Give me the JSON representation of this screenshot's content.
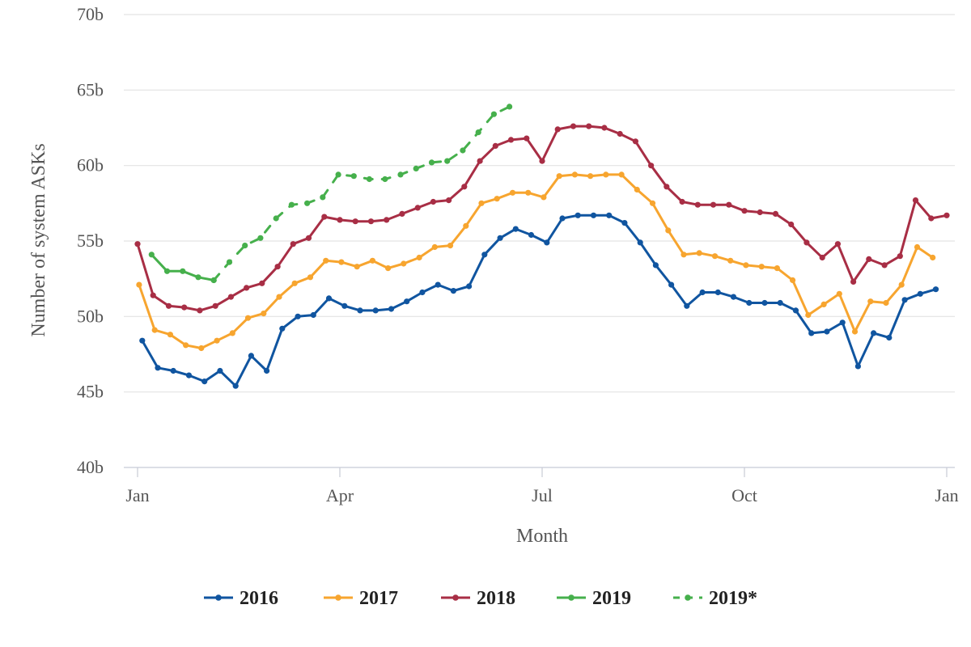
{
  "chart_data": {
    "type": "line",
    "title": "",
    "xlabel": "Month",
    "ylabel": "Number of system ASKs",
    "x_ticks": [
      {
        "label": "Jan",
        "week": 0
      },
      {
        "label": "Apr",
        "week": 13
      },
      {
        "label": "Jul",
        "week": 26
      },
      {
        "label": "Oct",
        "week": 39
      },
      {
        "label": "Jan",
        "week": 52
      }
    ],
    "y_ticks": [
      "40b",
      "45b",
      "50b",
      "55b",
      "60b",
      "65b",
      "70b"
    ],
    "ylim": [
      40,
      70
    ],
    "y_unit": "billions",
    "grid": "horizontal",
    "legend_position": "bottom",
    "series": [
      {
        "name": "2016",
        "color": "#1055a0",
        "dashed": false,
        "start_week": 0.3,
        "values": [
          48.4,
          46.6,
          46.4,
          46.1,
          45.7,
          46.4,
          45.4,
          47.4,
          46.4,
          49.2,
          50.0,
          50.1,
          51.2,
          50.7,
          50.4,
          50.4,
          50.5,
          51.0,
          51.6,
          52.1,
          51.7,
          52.0,
          54.1,
          55.2,
          55.8,
          55.4,
          54.9,
          56.5,
          56.7,
          56.7,
          56.7,
          56.2,
          54.9,
          53.4,
          52.1,
          50.7,
          51.6,
          51.6,
          51.3,
          50.9,
          50.9,
          50.9,
          50.4,
          48.9,
          49.0,
          49.6,
          46.7,
          48.9,
          48.6,
          51.1,
          51.5,
          51.8
        ]
      },
      {
        "name": "2017",
        "color": "#f7a52f",
        "dashed": false,
        "start_week": 0.1,
        "values": [
          52.1,
          49.1,
          48.8,
          48.1,
          47.9,
          48.4,
          48.9,
          49.9,
          50.2,
          51.3,
          52.2,
          52.6,
          53.7,
          53.6,
          53.3,
          53.7,
          53.2,
          53.5,
          53.9,
          54.6,
          54.7,
          56.0,
          57.5,
          57.8,
          58.2,
          58.2,
          57.9,
          59.3,
          59.4,
          59.3,
          59.4,
          59.4,
          58.4,
          57.5,
          55.7,
          54.1,
          54.2,
          54.0,
          53.7,
          53.4,
          53.3,
          53.2,
          52.4,
          50.1,
          50.8,
          51.5,
          49.0,
          51.0,
          50.9,
          52.1,
          54.6,
          53.9
        ]
      },
      {
        "name": "2018",
        "color": "#a82e45",
        "dashed": false,
        "start_week": 0.0,
        "values": [
          54.8,
          51.4,
          50.7,
          50.6,
          50.4,
          50.7,
          51.3,
          51.9,
          52.2,
          53.3,
          54.8,
          55.2,
          56.6,
          56.4,
          56.3,
          56.3,
          56.4,
          56.8,
          57.2,
          57.6,
          57.7,
          58.6,
          60.3,
          61.3,
          61.7,
          61.8,
          60.3,
          62.4,
          62.6,
          62.6,
          62.5,
          62.1,
          61.6,
          60.0,
          58.6,
          57.6,
          57.4,
          57.4,
          57.4,
          57.0,
          56.9,
          56.8,
          56.1,
          54.9,
          53.9,
          54.8,
          52.3,
          53.8,
          53.4,
          54.0,
          57.7,
          56.5,
          56.7
        ]
      },
      {
        "name": "2019",
        "color": "#46b04c",
        "dashed": false,
        "start_week": 0.9,
        "values": [
          54.1,
          53.0,
          53.0,
          52.6,
          52.4
        ]
      },
      {
        "name": "2019*",
        "color": "#46b04c",
        "dashed": true,
        "start_week": 4.9,
        "values": [
          52.4,
          53.6,
          54.7,
          55.2,
          56.5,
          57.4,
          57.5,
          57.9,
          59.4,
          59.3,
          59.1,
          59.1,
          59.4,
          59.8,
          60.2,
          60.3,
          61.0,
          62.2,
          63.4,
          63.9
        ]
      }
    ]
  }
}
